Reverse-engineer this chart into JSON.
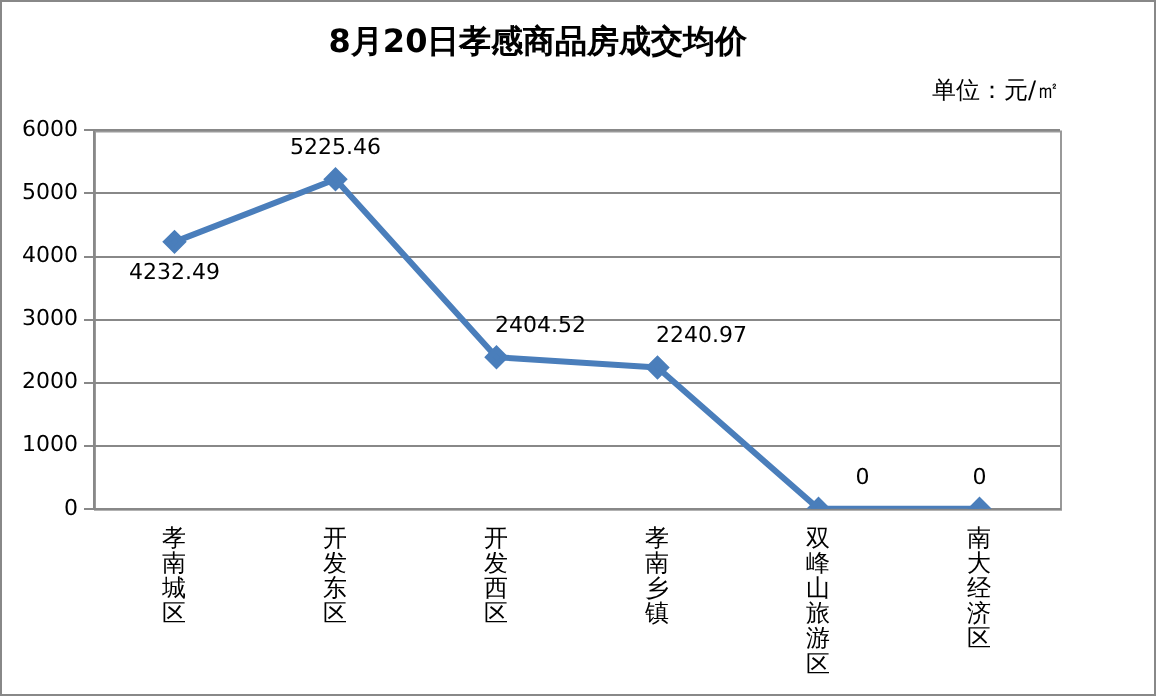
{
  "chart_data": {
    "type": "line",
    "title": "8月20日孝感商品房成交均价",
    "annotations": [
      "单位：元/㎡"
    ],
    "categories": [
      "孝南城区",
      "开发东区",
      "开发西区",
      "孝南乡镇",
      "双峰山旅游区",
      "南大经济区"
    ],
    "series": [
      {
        "color": "#4a7ebb",
        "values": [
          4232.49,
          5225.46,
          2404.52,
          2240.97,
          0,
          0
        ]
      }
    ],
    "ylim": [
      0,
      6000
    ],
    "yticks": [
      0,
      1000,
      2000,
      3000,
      4000,
      5000,
      6000
    ],
    "grid": "y",
    "legend": false,
    "marker": "diamond",
    "data_labels": true
  }
}
